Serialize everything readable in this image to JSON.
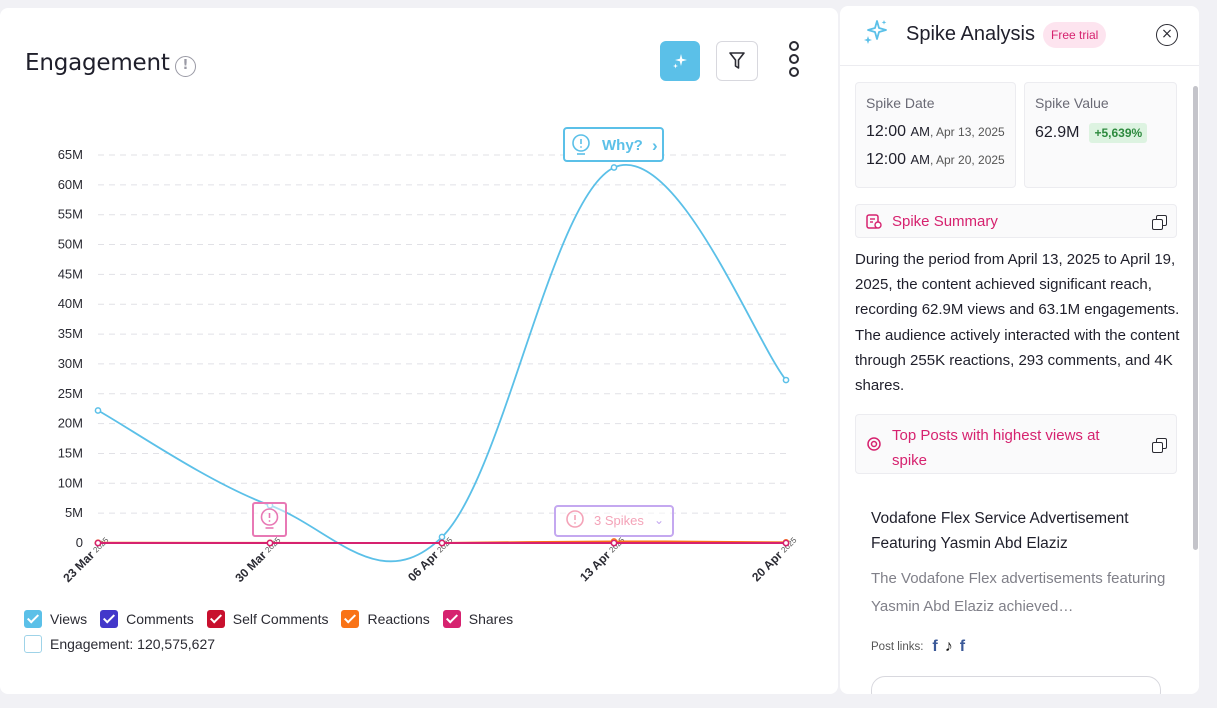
{
  "card": {
    "title": "Engagement",
    "info_glyph": "!"
  },
  "chart_data": {
    "type": "line",
    "categories": [
      "23 Mar",
      "30 Mar",
      "06 Apr",
      "13 Apr",
      "20 Apr"
    ],
    "category_year": "2025",
    "yticks": [
      "0",
      "5M",
      "10M",
      "15M",
      "20M",
      "25M",
      "30M",
      "35M",
      "40M",
      "45M",
      "50M",
      "55M",
      "60M",
      "65M"
    ],
    "ylim": [
      0,
      65
    ],
    "y_unit": "M",
    "series": [
      {
        "name": "Views",
        "color": "#5bc0e8",
        "values": [
          22.2,
          6.3,
          1.0,
          62.9,
          27.3
        ]
      },
      {
        "name": "Comments",
        "color": "#4338ca",
        "values": [
          0,
          0,
          0,
          0,
          0
        ]
      },
      {
        "name": "Self Comments",
        "color": "#c8102e",
        "values": [
          0,
          0,
          0,
          0,
          0
        ]
      },
      {
        "name": "Reactions",
        "color": "#f97316",
        "values": [
          0.05,
          0.02,
          0.01,
          0.26,
          0.1
        ]
      },
      {
        "name": "Shares",
        "color": "#d6226f",
        "values": [
          0,
          0,
          0,
          0,
          0
        ]
      }
    ],
    "grid": true,
    "annotations": {
      "why_label": "Why?",
      "why_chevron": "›",
      "spikes_label": "3 Spikes",
      "spikes_chevron": "⌄"
    }
  },
  "legend": {
    "items": [
      {
        "label": "Views",
        "color": "#5bc0e8",
        "checked": true
      },
      {
        "label": "Comments",
        "color": "#4338ca",
        "checked": true
      },
      {
        "label": "Self Comments",
        "color": "#c8102e",
        "checked": true
      },
      {
        "label": "Reactions",
        "color": "#f97316",
        "checked": true
      },
      {
        "label": "Shares",
        "color": "#d6226f",
        "checked": true
      }
    ],
    "engagement_label": "Engagement: 120,575,627"
  },
  "panel": {
    "title": "Spike Analysis",
    "trial_badge": "Free trial",
    "close_glyph": "×",
    "spike_date_label": "Spike Date",
    "dates": [
      {
        "time": "12:00",
        "ampm": "AM",
        "date": ", Apr 13, 2025"
      },
      {
        "time": "12:00",
        "ampm": "AM",
        "date": ", Apr 20, 2025"
      }
    ],
    "spike_value_label": "Spike Value",
    "spike_value": "62.9M",
    "spike_pct": "+5,639%",
    "summary_head": "Spike Summary",
    "summary_text": "During the period from April 13, 2025 to April 19, 2025, the content achieved significant reach, recording 62.9M views and 63.1M engagements. The audience actively interacted with the content through 255K reactions, 293 comments, and 4K shares.",
    "top_posts_head": "Top Posts with highest views at spike",
    "post_title": "Vodafone Flex Service Advertisement Featuring Yasmin Abd Elaziz",
    "post_desc": "The Vodafone Flex advertisements featuring Yasmin Abd Elaziz achieved…",
    "post_links_label": "Post links:",
    "post_link_icons": [
      "f",
      "♪",
      "f"
    ]
  },
  "colors": {
    "accent": "#5bc0e8",
    "brand_pink": "#d6226f",
    "success": "#2d8a3e"
  }
}
